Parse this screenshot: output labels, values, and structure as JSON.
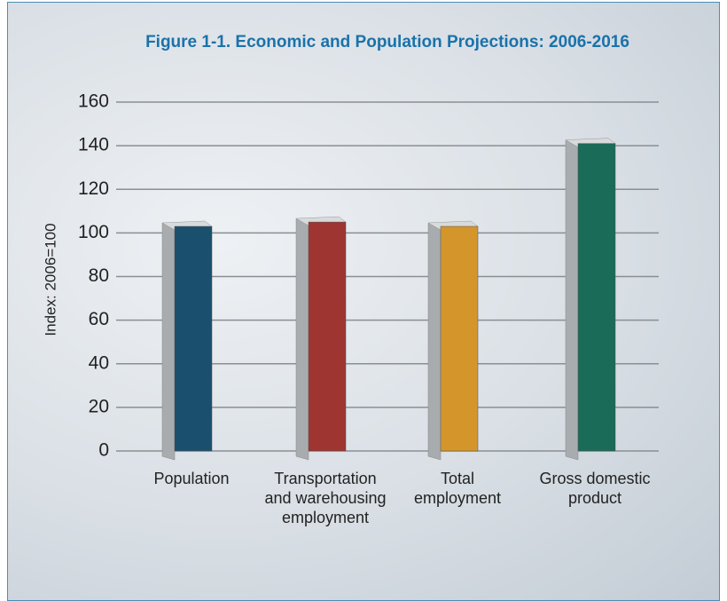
{
  "chart_data": {
    "type": "bar",
    "title": "Figure 1-1.  Economic and Population Projections: 2006-2016",
    "y_label": "Index: 2006=100",
    "categories": [
      "Population",
      "Transportation and warehousing employment",
      "Total employment",
      "Gross domestic product"
    ],
    "values": [
      103,
      105,
      103,
      141
    ],
    "colors": [
      "#1b4f6e",
      "#9e3530",
      "#d4962b",
      "#1a6b58"
    ],
    "ylim": [
      0,
      160
    ],
    "yticks": [
      0,
      20,
      40,
      60,
      80,
      100,
      120,
      140,
      160
    ],
    "grid": true
  }
}
